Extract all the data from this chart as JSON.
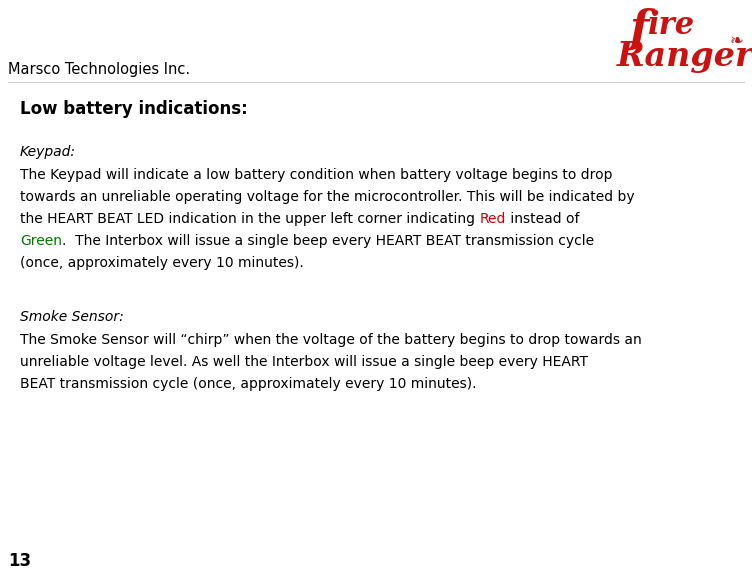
{
  "company": "Marsco Technologies Inc.",
  "page_number": "13",
  "section_title": "Low battery indications:",
  "subsection1_title": "Keypad:",
  "subsection2_title": "Smoke Sensor:",
  "subsection1_lines": [
    [
      [
        "The Keypad will indicate a low battery condition when battery voltage begins to drop",
        "black"
      ]
    ],
    [
      [
        "towards an unreliable operating voltage for the microcontroller. This will be indicated by",
        "black"
      ]
    ],
    [
      [
        "the HEART BEAT LED indication in the upper left corner indicating ",
        "black"
      ],
      [
        "Red",
        "red"
      ],
      [
        " instead of",
        "black"
      ]
    ],
    [
      [
        "Green",
        "green"
      ],
      [
        ".  The Interbox will issue a single beep every HEART BEAT transmission cycle",
        "black"
      ]
    ],
    [
      [
        "(once, approximately every 10 minutes).",
        "black"
      ]
    ]
  ],
  "subsection2_lines": [
    [
      [
        "The Smoke Sensor will “chirp” when the voltage of the battery begins to drop towards an",
        "black"
      ]
    ],
    [
      [
        "unreliable voltage level. As well the Interbox will issue a single beep every HEART",
        "black"
      ]
    ],
    [
      [
        "BEAT transmission cycle (once, approximately every 10 minutes).",
        "black"
      ]
    ]
  ],
  "bg_color": "#ffffff",
  "text_color": "#000000",
  "red_color": "#cc0000",
  "green_color": "#007700",
  "logo_red_color": "#cc1111",
  "company_fontsize": 10.5,
  "section_title_fontsize": 12,
  "subtitle_fontsize": 10,
  "body_fontsize": 10,
  "page_fontsize": 12,
  "fig_width": 7.52,
  "fig_height": 5.84,
  "dpi": 100
}
